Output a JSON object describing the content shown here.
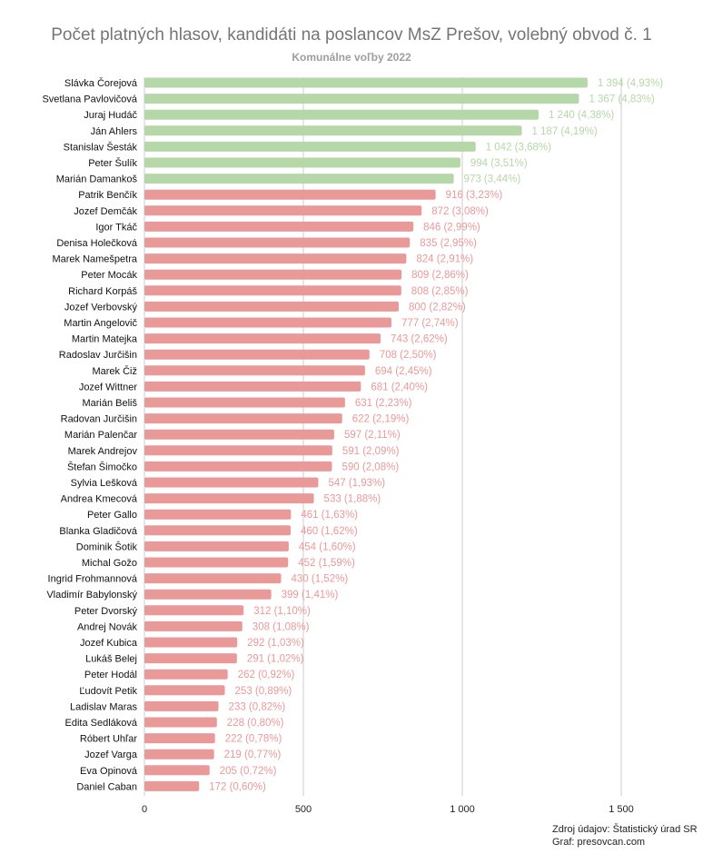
{
  "chart_data": {
    "type": "bar",
    "orientation": "horizontal",
    "title": "Počet platných hlasov, kandidáti na poslancov MsZ Prešov, volebný obvod č. 1",
    "subtitle": "Komunálne voľby 2022",
    "xlim": [
      0,
      1750
    ],
    "x_ticks": [
      0,
      500,
      1000,
      1500
    ],
    "x_tick_labels": [
      "0",
      "500",
      "1 000",
      "1 500"
    ],
    "grid": "vertical",
    "elected_count": 7,
    "colors": {
      "elected": "#b6d7a8",
      "not_elected": "#ea9999",
      "grid": "#cccccc"
    },
    "categories": [
      "Slávka Čorejová",
      "Svetlana Pavlovičová",
      "Juraj Hudáč",
      "Ján Ahlers",
      "Stanislav Šesták",
      "Peter Šulík",
      "Marián Damankoš",
      "Patrik Benčík",
      "Jozef Demčák",
      "Igor Tkáč",
      "Denisa Holečková",
      "Marek Namešpetra",
      "Peter Mocák",
      "Richard Korpáš",
      "Jozef Verbovský",
      "Martin Angelovič",
      "Martin Matejka",
      "Radoslav Jurčišin",
      "Marek Čiž",
      "Jozef Wittner",
      "Marián Beliš",
      "Radovan Jurčišin",
      "Marián Palenčar",
      "Marek Andrejov",
      "Štefan Šimočko",
      "Sylvia Lešková",
      "Andrea Kmecová",
      "Peter Gallo",
      "Blanka Gladičová",
      "Dominik Šotik",
      "Michal Gožo",
      "Ingrid Frohmannová",
      "Vladimír Babylonský",
      "Peter Dvorský",
      "Andrej Novák",
      "Jozef Kubica",
      "Lukáš Belej",
      "Peter Hodál",
      "Ľudovít Petik",
      "Ladislav Maras",
      "Edita Sedláková",
      "Róbert Uhľar",
      "Jozef Varga",
      "Eva Opinová",
      "Daniel Caban"
    ],
    "values": [
      1394,
      1367,
      1240,
      1187,
      1042,
      994,
      973,
      916,
      872,
      846,
      835,
      824,
      809,
      808,
      800,
      777,
      743,
      708,
      694,
      681,
      631,
      622,
      597,
      591,
      590,
      547,
      533,
      461,
      460,
      454,
      452,
      430,
      399,
      312,
      308,
      292,
      291,
      262,
      253,
      233,
      228,
      222,
      219,
      205,
      172
    ],
    "data_labels": [
      "1 394 (4,93%)",
      "1 367 (4,83%)",
      "1 240 (4,38%)",
      "1 187 (4,19%)",
      "1 042 (3,68%)",
      "994 (3,51%)",
      "973 (3,44%)",
      "916 (3,23%)",
      "872 (3,08%)",
      "846 (2,99%)",
      "835 (2,95%)",
      "824 (2,91%)",
      "809 (2,86%)",
      "808 (2,85%)",
      "800 (2,82%)",
      "777 (2,74%)",
      "743 (2,62%)",
      "708 (2,50%)",
      "694 (2,45%)",
      "681 (2,40%)",
      "631 (2,23%)",
      "622 (2,19%)",
      "597 (2,11%)",
      "591 (2,09%)",
      "590 (2,08%)",
      "547 (1,93%)",
      "533 (1,88%)",
      "461 (1,63%)",
      "460 (1,62%)",
      "454 (1,60%)",
      "452 (1,59%)",
      "430 (1,52%)",
      "399 (1,41%)",
      "312 (1,10%)",
      "308 (1,08%)",
      "292 (1,03%)",
      "291 (1,02%)",
      "262 (0,92%)",
      "253 (0,89%)",
      "233 (0,82%)",
      "228 (0,80%)",
      "222 (0,78%)",
      "219 (0,77%)",
      "205 (0,72%)",
      "172 (0,60%)"
    ]
  },
  "source": {
    "line1": "Zdroj údajov: Štatistický úrad SR",
    "line2": "Graf: presovcan.com"
  }
}
